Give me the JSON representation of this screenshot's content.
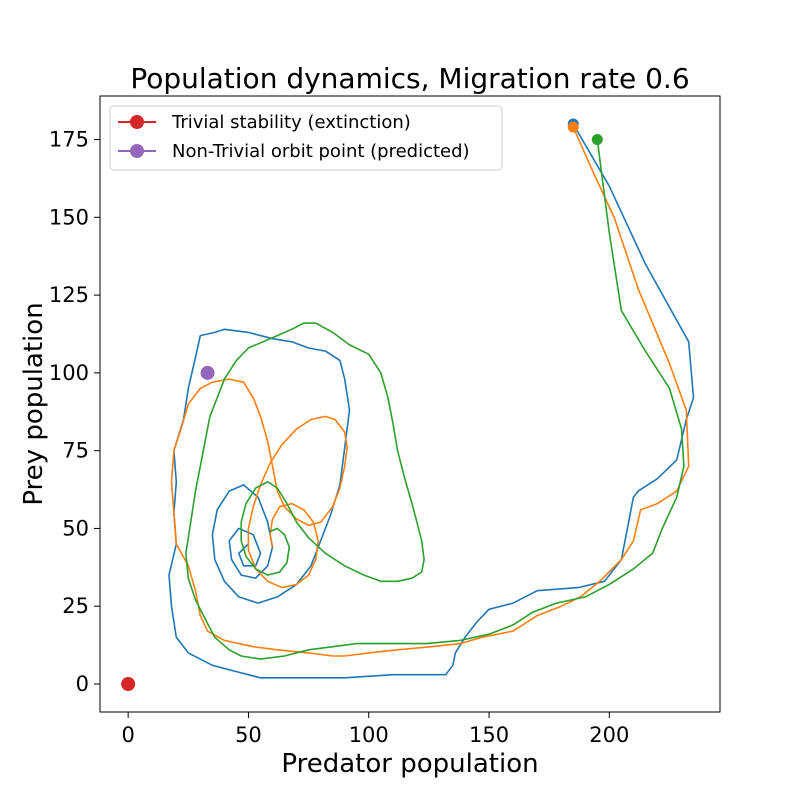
{
  "chart_data": {
    "type": "line",
    "title": "Population dynamics, Migration rate 0.6",
    "xlabel": "Predator population",
    "ylabel": "Prey population",
    "xlim": [
      -11.7,
      246.0
    ],
    "ylim": [
      -9.0,
      189.0
    ],
    "xticks": [
      0,
      50,
      100,
      150,
      200
    ],
    "yticks": [
      0,
      25,
      50,
      75,
      100,
      125,
      150,
      175
    ],
    "grid": false,
    "legend": {
      "placement": "top-left",
      "entries": [
        {
          "label": "Trivial stability (extinction)",
          "color": "#d62728"
        },
        {
          "label": "Non-Trivial orbit point (predicted)",
          "color": "#9467bd"
        }
      ]
    },
    "points": [
      {
        "name": "Trivial stability (extinction)",
        "x": 0,
        "y": 0,
        "color": "#d62728"
      },
      {
        "name": "Non-Trivial orbit point (predicted)",
        "x": 33,
        "y": 100,
        "color": "#9467bd"
      }
    ],
    "series": [
      {
        "color": "#1f77b4",
        "start": [
          185,
          180
        ],
        "values": [
          [
            185,
            180
          ],
          [
            200,
            160
          ],
          [
            215,
            135
          ],
          [
            233,
            110
          ],
          [
            235,
            92
          ],
          [
            232,
            85
          ],
          [
            228,
            72
          ],
          [
            220,
            66
          ],
          [
            212,
            62
          ],
          [
            210,
            60
          ],
          [
            208,
            52
          ],
          [
            205,
            40
          ],
          [
            198,
            33
          ],
          [
            187,
            31
          ],
          [
            170,
            30
          ],
          [
            160,
            26
          ],
          [
            150,
            24
          ],
          [
            145,
            20
          ],
          [
            140,
            15
          ],
          [
            136,
            10
          ],
          [
            135,
            6
          ],
          [
            132,
            3
          ],
          [
            110,
            3
          ],
          [
            90,
            2
          ],
          [
            78,
            2
          ],
          [
            70,
            2
          ],
          [
            55,
            2
          ],
          [
            45,
            4
          ],
          [
            35,
            6
          ],
          [
            25,
            10
          ],
          [
            20,
            15
          ],
          [
            18,
            25
          ],
          [
            17,
            35
          ],
          [
            20,
            45
          ],
          [
            19,
            55
          ],
          [
            20,
            65
          ],
          [
            19,
            75
          ],
          [
            23,
            85
          ],
          [
            25,
            95
          ],
          [
            28,
            105
          ],
          [
            30,
            112
          ],
          [
            36,
            113
          ],
          [
            40,
            114
          ],
          [
            50,
            113
          ],
          [
            60,
            111
          ],
          [
            68,
            110
          ],
          [
            75,
            108
          ],
          [
            82,
            107
          ],
          [
            88,
            104
          ],
          [
            90,
            98
          ],
          [
            92,
            88
          ],
          [
            90,
            76
          ],
          [
            88,
            64
          ],
          [
            84,
            54
          ],
          [
            80,
            46
          ],
          [
            76,
            38
          ],
          [
            70,
            32
          ],
          [
            62,
            28
          ],
          [
            54,
            26
          ],
          [
            46,
            28
          ],
          [
            40,
            33
          ],
          [
            36,
            40
          ],
          [
            35,
            48
          ],
          [
            37,
            56
          ],
          [
            42,
            62
          ],
          [
            48,
            64
          ],
          [
            54,
            60
          ],
          [
            58,
            52
          ],
          [
            60,
            44
          ],
          [
            58,
            38
          ],
          [
            53,
            34
          ],
          [
            47,
            35
          ],
          [
            43,
            40
          ],
          [
            42,
            46
          ],
          [
            46,
            50
          ],
          [
            52,
            48
          ],
          [
            55,
            42
          ],
          [
            53,
            38
          ],
          [
            48,
            38
          ],
          [
            46,
            42
          ],
          [
            50,
            45
          ]
        ]
      },
      {
        "color": "#ff7f0e",
        "start": [
          185,
          179
        ],
        "values": [
          [
            185,
            179
          ],
          [
            193,
            165
          ],
          [
            202,
            150
          ],
          [
            212,
            127
          ],
          [
            225,
            103
          ],
          [
            232,
            88
          ],
          [
            233,
            70
          ],
          [
            228,
            62
          ],
          [
            220,
            58
          ],
          [
            213,
            56
          ],
          [
            210,
            46
          ],
          [
            205,
            40
          ],
          [
            196,
            33
          ],
          [
            188,
            28
          ],
          [
            180,
            25
          ],
          [
            170,
            22
          ],
          [
            160,
            17
          ],
          [
            147,
            15
          ],
          [
            138,
            13
          ],
          [
            126,
            12
          ],
          [
            112,
            11
          ],
          [
            100,
            10
          ],
          [
            90,
            9
          ],
          [
            85,
            9
          ],
          [
            75,
            10
          ],
          [
            62,
            11
          ],
          [
            52,
            12
          ],
          [
            40,
            14
          ],
          [
            33,
            17
          ],
          [
            30,
            22
          ],
          [
            28,
            30
          ],
          [
            25,
            38
          ],
          [
            20,
            45
          ],
          [
            19,
            55
          ],
          [
            18,
            65
          ],
          [
            19,
            75
          ],
          [
            22,
            82
          ],
          [
            25,
            90
          ],
          [
            30,
            95
          ],
          [
            35,
            97
          ],
          [
            42,
            98
          ],
          [
            48,
            97
          ],
          [
            52,
            92
          ],
          [
            55,
            86
          ],
          [
            58,
            78
          ],
          [
            60,
            70
          ],
          [
            62,
            62
          ],
          [
            65,
            57
          ],
          [
            70,
            53
          ],
          [
            75,
            51
          ],
          [
            80,
            52
          ],
          [
            85,
            57
          ],
          [
            88,
            63
          ],
          [
            90,
            70
          ],
          [
            91,
            76
          ],
          [
            90,
            81
          ],
          [
            86,
            85
          ],
          [
            82,
            86
          ],
          [
            76,
            85
          ],
          [
            70,
            82
          ],
          [
            64,
            77
          ],
          [
            59,
            71
          ],
          [
            55,
            64
          ],
          [
            52,
            57
          ],
          [
            50,
            50
          ],
          [
            50,
            43
          ],
          [
            53,
            37
          ],
          [
            58,
            33
          ],
          [
            64,
            31
          ],
          [
            70,
            32
          ],
          [
            75,
            35
          ],
          [
            78,
            40
          ],
          [
            79,
            46
          ],
          [
            77,
            52
          ],
          [
            73,
            56
          ],
          [
            68,
            58
          ],
          [
            63,
            57
          ],
          [
            60,
            53
          ],
          [
            59,
            48
          ],
          [
            60,
            44
          ]
        ]
      },
      {
        "color": "#2ca02c",
        "start": [
          195,
          175
        ],
        "values": [
          [
            195,
            175
          ],
          [
            200,
            145
          ],
          [
            205,
            120
          ],
          [
            215,
            107
          ],
          [
            225,
            95
          ],
          [
            230,
            82
          ],
          [
            231,
            70
          ],
          [
            228,
            60
          ],
          [
            222,
            50
          ],
          [
            218,
            42
          ],
          [
            210,
            37
          ],
          [
            200,
            32
          ],
          [
            190,
            28
          ],
          [
            178,
            26
          ],
          [
            168,
            23
          ],
          [
            160,
            19
          ],
          [
            150,
            16
          ],
          [
            138,
            14
          ],
          [
            124,
            13
          ],
          [
            110,
            13
          ],
          [
            95,
            13
          ],
          [
            85,
            12
          ],
          [
            75,
            11
          ],
          [
            65,
            9
          ],
          [
            55,
            8
          ],
          [
            47,
            9
          ],
          [
            42,
            11
          ],
          [
            36,
            15
          ],
          [
            32,
            21
          ],
          [
            28,
            27
          ],
          [
            25,
            34
          ],
          [
            24,
            42
          ],
          [
            26,
            52
          ],
          [
            28,
            62
          ],
          [
            30,
            70
          ],
          [
            32,
            78
          ],
          [
            34,
            86
          ],
          [
            37,
            92
          ],
          [
            40,
            98
          ],
          [
            45,
            104
          ],
          [
            50,
            108
          ],
          [
            56,
            110
          ],
          [
            62,
            112
          ],
          [
            68,
            114
          ],
          [
            73,
            116
          ],
          [
            78,
            116
          ],
          [
            85,
            113
          ],
          [
            92,
            109
          ],
          [
            100,
            106
          ],
          [
            105,
            100
          ],
          [
            108,
            92
          ],
          [
            110,
            84
          ],
          [
            112,
            75
          ],
          [
            115,
            66
          ],
          [
            118,
            58
          ],
          [
            120,
            52
          ],
          [
            122,
            46
          ],
          [
            123,
            40
          ],
          [
            122,
            36
          ],
          [
            118,
            34
          ],
          [
            112,
            33
          ],
          [
            105,
            33
          ],
          [
            98,
            35
          ],
          [
            90,
            38
          ],
          [
            82,
            42
          ],
          [
            75,
            47
          ],
          [
            70,
            52
          ],
          [
            66,
            58
          ],
          [
            62,
            63
          ],
          [
            58,
            65
          ],
          [
            53,
            63
          ],
          [
            49,
            58
          ],
          [
            47,
            52
          ],
          [
            47,
            46
          ],
          [
            49,
            41
          ],
          [
            53,
            37
          ],
          [
            58,
            35
          ],
          [
            63,
            36
          ],
          [
            66,
            39
          ],
          [
            67,
            44
          ],
          [
            65,
            48
          ],
          [
            62,
            50
          ],
          [
            59,
            49
          ]
        ]
      }
    ]
  }
}
